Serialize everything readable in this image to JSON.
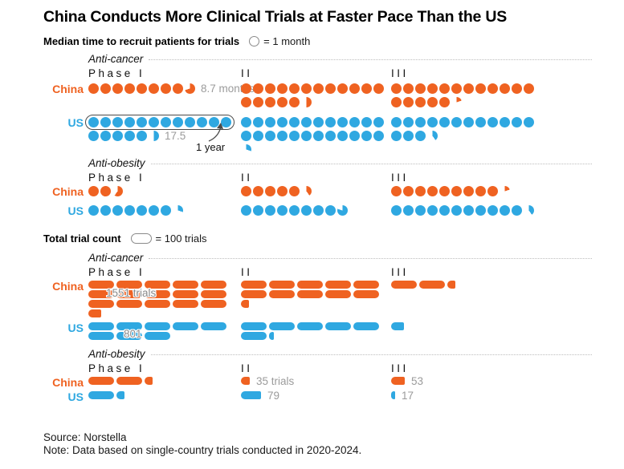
{
  "title": "China Conducts More Clinical Trials at Faster Pace Than the US",
  "source": "Source: Norstella",
  "note": "Note: Data based on single-country trials conducted in 2020-2024.",
  "colors": {
    "china": "#ef6221",
    "us": "#2fa8e1"
  },
  "chart_data": {
    "type": "pictogram",
    "title": "China Conducts More Clinical Trials at Faster Pace Than the US",
    "phases": [
      "Phase I",
      "II",
      "III"
    ],
    "panels": [
      {
        "name": "median_recruit_time",
        "heading": "Median time to recruit patients for trials",
        "unit_symbol": "circle",
        "unit_label": "= 1 month",
        "per_symbol_value": "1 month",
        "symbols_per_row": 12,
        "sections": [
          {
            "label": "Anti-cancer",
            "annotation": "1 year",
            "series": [
              {
                "name": "China",
                "values": [
                  8.7,
                  17.5,
                  17.2
                ],
                "value_labels": [
                  "8.7 months",
                  "",
                  ""
                ]
              },
              {
                "name": "US",
                "values": [
                  17.5,
                  24.3,
                  15.4
                ],
                "value_labels": [
                  "17.5",
                  "",
                  ""
                ]
              }
            ]
          },
          {
            "label": "Anti-obesity",
            "series": [
              {
                "name": "China",
                "values": [
                  2.6,
                  5.4,
                  9.2
                ],
                "value_labels": [
                  "",
                  "",
                  ""
                ]
              },
              {
                "name": "US",
                "values": [
                  7.3,
                  8.8,
                  11.4
                ],
                "value_labels": [
                  "",
                  "",
                  ""
                ]
              }
            ]
          }
        ]
      },
      {
        "name": "total_trial_count",
        "heading": "Total trial count",
        "unit_symbol": "pill",
        "unit_label": "= 100 trials",
        "per_symbol_value": "100 trials",
        "symbols_per_row": 5,
        "sections": [
          {
            "label": "Anti-cancer",
            "series": [
              {
                "name": "China",
                "values": [
                  1551,
                  1030,
                  230
                ],
                "value_labels": [
                  "1551 trials",
                  "",
                  ""
                ],
                "overlay": [
                  true,
                  false,
                  false
                ]
              },
              {
                "name": "US",
                "values": [
                  801,
                  620,
                  50
                ],
                "value_labels": [
                  "801",
                  "",
                  ""
                ],
                "overlay": [
                  true,
                  false,
                  false
                ]
              }
            ]
          },
          {
            "label": "Anti-obesity",
            "series": [
              {
                "name": "China",
                "values": [
                  230,
                  35,
                  53
                ],
                "value_labels": [
                  "",
                  "35 trials",
                  "53"
                ]
              },
              {
                "name": "US",
                "values": [
                  130,
                  79,
                  17
                ],
                "value_labels": [
                  "",
                  "79",
                  "17"
                ]
              }
            ]
          }
        ]
      }
    ]
  }
}
